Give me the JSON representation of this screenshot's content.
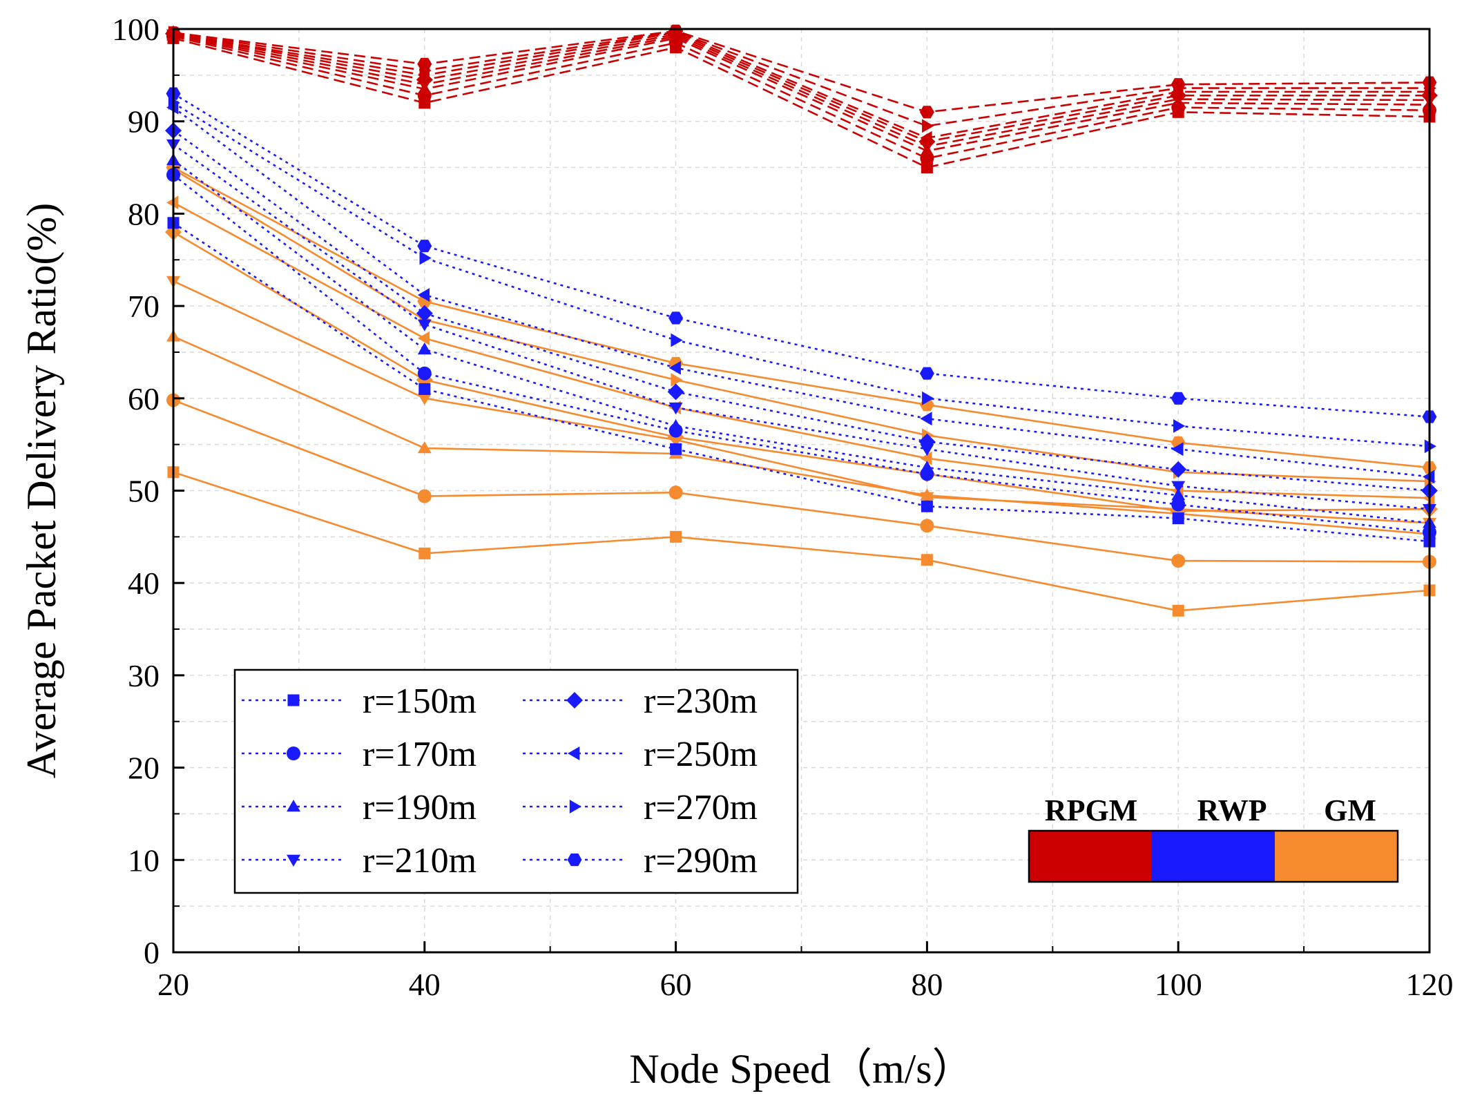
{
  "chart_data": {
    "type": "line",
    "title": "",
    "xlabel": "Node Speed（m/s）",
    "ylabel": "Average Packet Delivery Ratio(%)",
    "xlim": [
      20,
      120
    ],
    "ylim": [
      0,
      100
    ],
    "x_ticks": [
      "20",
      "40",
      "60",
      "80",
      "100",
      "120"
    ],
    "y_ticks": [
      "0",
      "10",
      "20",
      "30",
      "40",
      "50",
      "60",
      "70",
      "80",
      "90",
      "100"
    ],
    "grid": true,
    "x": [
      20,
      40,
      60,
      80,
      100,
      120
    ],
    "models": [
      {
        "name": "RPGM",
        "color": "#cc0000",
        "line_style": "dashed"
      },
      {
        "name": "RWP",
        "color": "#1a1aff",
        "line_style": "dotted"
      },
      {
        "name": "GM",
        "color": "#f68a2e",
        "line_style": "solid"
      }
    ],
    "legend": [
      {
        "label": "r=150m",
        "marker": "square"
      },
      {
        "label": "r=170m",
        "marker": "circle"
      },
      {
        "label": "r=190m",
        "marker": "triangle-up"
      },
      {
        "label": "r=210m",
        "marker": "triangle-down"
      },
      {
        "label": "r=230m",
        "marker": "diamond"
      },
      {
        "label": "r=250m",
        "marker": "triangle-left"
      },
      {
        "label": "r=270m",
        "marker": "triangle-right"
      },
      {
        "label": "r=290m",
        "marker": "hexagon"
      }
    ],
    "legend_position": "lower-left",
    "model_legend_position": "lower-right",
    "series": [
      {
        "name": "RPGM r=150m",
        "model": "RPGM",
        "radius": "r=150m",
        "marker": "square",
        "values": [
          99.0,
          92.0,
          98.0,
          85.0,
          91.0,
          90.5
        ]
      },
      {
        "name": "RPGM r=170m",
        "model": "RPGM",
        "radius": "r=170m",
        "marker": "circle",
        "values": [
          99.2,
          92.8,
          98.5,
          86.0,
          91.5,
          91.2
        ]
      },
      {
        "name": "RPGM r=190m",
        "model": "RPGM",
        "radius": "r=190m",
        "marker": "triangle-up",
        "values": [
          99.3,
          93.5,
          99.0,
          86.8,
          92.0,
          91.8
        ]
      },
      {
        "name": "RPGM r=210m",
        "model": "RPGM",
        "radius": "r=210m",
        "marker": "triangle-down",
        "values": [
          99.4,
          94.0,
          99.2,
          87.3,
          92.4,
          92.3
        ]
      },
      {
        "name": "RPGM r=230m",
        "model": "RPGM",
        "radius": "r=230m",
        "marker": "diamond",
        "values": [
          99.5,
          94.5,
          99.4,
          87.8,
          92.8,
          92.8
        ]
      },
      {
        "name": "RPGM r=250m",
        "model": "RPGM",
        "radius": "r=250m",
        "marker": "triangle-left",
        "values": [
          99.5,
          95.0,
          99.6,
          88.2,
          93.2,
          93.2
        ]
      },
      {
        "name": "RPGM r=270m",
        "model": "RPGM",
        "radius": "r=270m",
        "marker": "triangle-right",
        "values": [
          99.6,
          95.5,
          99.7,
          89.5,
          93.6,
          93.6
        ]
      },
      {
        "name": "RPGM r=290m",
        "model": "RPGM",
        "radius": "r=290m",
        "marker": "hexagon",
        "values": [
          99.6,
          96.2,
          99.8,
          91.0,
          94.0,
          94.2
        ]
      },
      {
        "name": "RWP r=150m",
        "model": "RWP",
        "radius": "r=150m",
        "marker": "square",
        "values": [
          79.0,
          61.0,
          54.5,
          48.3,
          47.0,
          44.5
        ]
      },
      {
        "name": "RWP r=170m",
        "model": "RWP",
        "radius": "r=170m",
        "marker": "circle",
        "values": [
          84.2,
          62.7,
          56.5,
          51.8,
          48.5,
          45.5
        ]
      },
      {
        "name": "RWP r=190m",
        "model": "RWP",
        "radius": "r=190m",
        "marker": "triangle-up",
        "values": [
          85.8,
          65.3,
          57.0,
          52.5,
          49.5,
          46.5
        ]
      },
      {
        "name": "RWP r=210m",
        "model": "RWP",
        "radius": "r=210m",
        "marker": "triangle-down",
        "values": [
          87.5,
          68.0,
          59.0,
          54.5,
          50.5,
          48.0
        ]
      },
      {
        "name": "RWP r=230m",
        "model": "RWP",
        "radius": "r=230m",
        "marker": "diamond",
        "values": [
          89.0,
          69.2,
          60.7,
          55.3,
          52.3,
          50.0
        ]
      },
      {
        "name": "RWP r=250m",
        "model": "RWP",
        "radius": "r=250m",
        "marker": "triangle-left",
        "values": [
          91.5,
          71.2,
          63.3,
          57.8,
          54.5,
          51.5
        ]
      },
      {
        "name": "RWP r=270m",
        "model": "RWP",
        "radius": "r=270m",
        "marker": "triangle-right",
        "values": [
          92.0,
          75.2,
          66.3,
          60.0,
          57.0,
          54.8
        ]
      },
      {
        "name": "RWP r=290m",
        "model": "RWP",
        "radius": "r=290m",
        "marker": "hexagon",
        "values": [
          93.0,
          76.5,
          68.7,
          62.7,
          60.0,
          58.0
        ]
      },
      {
        "name": "GM r=150m",
        "model": "GM",
        "radius": "r=150m",
        "marker": "square",
        "values": [
          52.0,
          43.2,
          45.0,
          42.5,
          37.0,
          39.2
        ]
      },
      {
        "name": "GM r=170m",
        "model": "GM",
        "radius": "r=170m",
        "marker": "circle",
        "values": [
          59.8,
          49.4,
          49.8,
          46.2,
          42.4,
          42.3
        ]
      },
      {
        "name": "GM r=190m",
        "model": "GM",
        "radius": "r=190m",
        "marker": "triangle-up",
        "values": [
          66.7,
          54.6,
          54.0,
          49.5,
          47.5,
          45.3
        ]
      },
      {
        "name": "GM r=210m",
        "model": "GM",
        "radius": "r=210m",
        "marker": "triangle-down",
        "values": [
          72.7,
          60.0,
          55.5,
          49.3,
          48.0,
          46.5
        ]
      },
      {
        "name": "GM r=230m",
        "model": "GM",
        "radius": "r=230m",
        "marker": "diamond",
        "values": [
          78.0,
          62.0,
          55.8,
          51.8,
          47.8,
          48.0
        ]
      },
      {
        "name": "GM r=250m",
        "model": "GM",
        "radius": "r=250m",
        "marker": "triangle-left",
        "values": [
          81.2,
          66.5,
          59.0,
          53.5,
          50.0,
          49.2
        ]
      },
      {
        "name": "GM r=270m",
        "model": "GM",
        "radius": "r=270m",
        "marker": "triangle-right",
        "values": [
          84.8,
          68.5,
          62.0,
          56.0,
          52.0,
          51.0
        ]
      },
      {
        "name": "GM r=290m",
        "model": "GM",
        "radius": "r=290m",
        "marker": "hexagon",
        "values": [
          85.0,
          70.5,
          63.8,
          59.3,
          55.2,
          52.5
        ]
      }
    ]
  }
}
